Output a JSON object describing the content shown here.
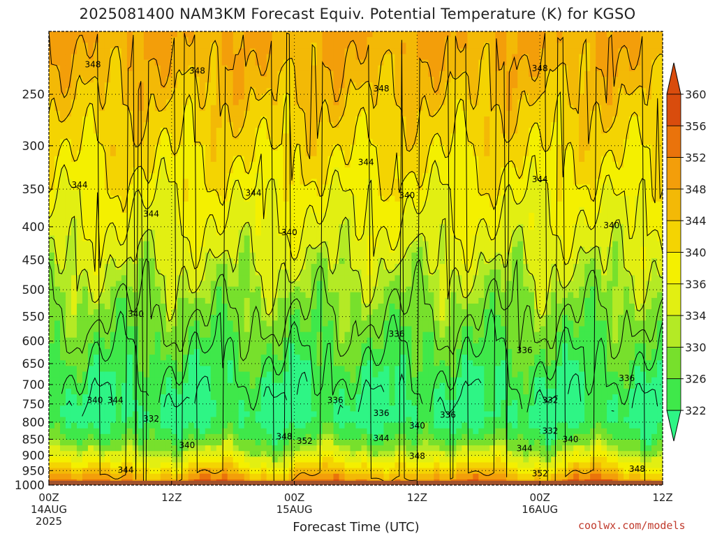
{
  "chart_data": {
    "type": "heatmap",
    "title": "2025081400 NAM3KM Forecast Equiv. Potential Temperature (K) for KGSO",
    "xlabel": "Forecast Time (UTC)",
    "ylabel": "",
    "x_ticks": [
      {
        "label": "00Z",
        "sub1": "14AUG",
        "sub2": "2025",
        "hour": 0
      },
      {
        "label": "12Z",
        "sub1": "",
        "sub2": "",
        "hour": 12
      },
      {
        "label": "00Z",
        "sub1": "15AUG",
        "sub2": "",
        "hour": 24
      },
      {
        "label": "12Z",
        "sub1": "",
        "sub2": "",
        "hour": 36
      },
      {
        "label": "00Z",
        "sub1": "16AUG",
        "sub2": "",
        "hour": 48
      },
      {
        "label": "12Z",
        "sub1": "",
        "sub2": "",
        "hour": 60
      }
    ],
    "xlim": [
      0,
      60
    ],
    "y_ticks": [
      250,
      300,
      350,
      400,
      450,
      500,
      550,
      600,
      650,
      700,
      750,
      800,
      850,
      900,
      950,
      1000
    ],
    "ylim": [
      1000,
      200
    ],
    "y_scale": "log",
    "colorbar": {
      "levels": [
        322,
        326,
        330,
        334,
        336,
        340,
        344,
        348,
        352,
        356,
        360
      ],
      "colors": [
        "#2ef585",
        "#3fe84a",
        "#77e02c",
        "#b4ea25",
        "#e2ef12",
        "#f4f000",
        "#f4d402",
        "#f3b906",
        "#f39e0a",
        "#ea730b",
        "#d94c0d"
      ]
    },
    "below_ground_color": "#a0522d",
    "contour_labels": [
      {
        "text": "348",
        "hour": 4.3,
        "p": 225
      },
      {
        "text": "348",
        "hour": 14.5,
        "p": 230
      },
      {
        "text": "348",
        "hour": 32.5,
        "p": 245
      },
      {
        "text": "348",
        "hour": 48.0,
        "p": 228
      },
      {
        "text": "344",
        "hour": 3.0,
        "p": 345
      },
      {
        "text": "344",
        "hour": 10.0,
        "p": 382
      },
      {
        "text": "344",
        "hour": 20.0,
        "p": 355
      },
      {
        "text": "344",
        "hour": 31.0,
        "p": 318
      },
      {
        "text": "344",
        "hour": 48.0,
        "p": 338
      },
      {
        "text": "340",
        "hour": 23.5,
        "p": 408
      },
      {
        "text": "340",
        "hour": 35.0,
        "p": 358
      },
      {
        "text": "340",
        "hour": 55.0,
        "p": 398
      },
      {
        "text": "340",
        "hour": 8.5,
        "p": 545
      },
      {
        "text": "336",
        "hour": 34.0,
        "p": 585
      },
      {
        "text": "336",
        "hour": 46.5,
        "p": 620
      },
      {
        "text": "336",
        "hour": 56.5,
        "p": 685
      },
      {
        "text": "340",
        "hour": 4.5,
        "p": 740
      },
      {
        "text": "344",
        "hour": 6.5,
        "p": 740
      },
      {
        "text": "332",
        "hour": 10.0,
        "p": 790
      },
      {
        "text": "336",
        "hour": 28.0,
        "p": 740
      },
      {
        "text": "336",
        "hour": 32.5,
        "p": 775
      },
      {
        "text": "336",
        "hour": 39.0,
        "p": 780
      },
      {
        "text": "332",
        "hour": 49.0,
        "p": 740
      },
      {
        "text": "340",
        "hour": 36.0,
        "p": 810
      },
      {
        "text": "332",
        "hour": 49.0,
        "p": 825
      },
      {
        "text": "340",
        "hour": 51.0,
        "p": 850
      },
      {
        "text": "340",
        "hour": 13.5,
        "p": 868
      },
      {
        "text": "348",
        "hour": 23.0,
        "p": 842
      },
      {
        "text": "352",
        "hour": 25.0,
        "p": 856
      },
      {
        "text": "344",
        "hour": 32.5,
        "p": 847
      },
      {
        "text": "344",
        "hour": 46.5,
        "p": 878
      },
      {
        "text": "348",
        "hour": 36.0,
        "p": 902
      },
      {
        "text": "344",
        "hour": 7.5,
        "p": 948
      },
      {
        "text": "352",
        "hour": 48.0,
        "p": 960
      },
      {
        "text": "348",
        "hour": 57.5,
        "p": 945
      }
    ]
  },
  "credit": "coolwx.com/models"
}
